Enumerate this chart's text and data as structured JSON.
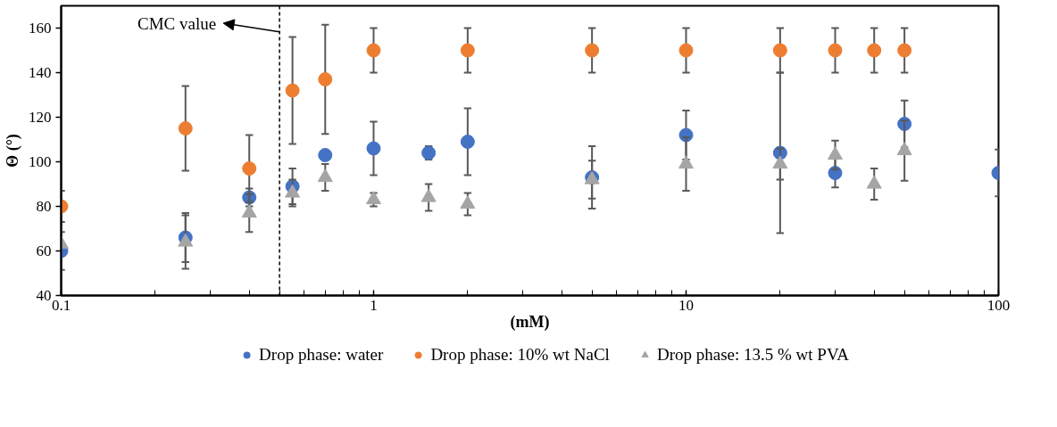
{
  "chart_data": {
    "type": "scatter",
    "xlabel": "(mM)",
    "ylabel": "Θ (°)",
    "log": "x",
    "xlim": [
      0.1,
      100
    ],
    "xticks": [
      0.1,
      1,
      10,
      100
    ],
    "ylim": [
      40,
      170
    ],
    "yticks": [
      40,
      60,
      80,
      100,
      120,
      140,
      160
    ],
    "grid": false,
    "legend": "bottom",
    "ref_lines": [
      {
        "axis": "x",
        "value": 0.5,
        "label": "CMC value",
        "line_style": "dashed",
        "color": "#000000"
      }
    ],
    "series": [
      {
        "name": "Drop phase: water",
        "color": "#4472c4",
        "marker": "circle",
        "x": [
          0.1,
          0.25,
          0.4,
          0.55,
          0.7,
          1,
          1.5,
          2,
          5,
          10,
          20,
          30,
          50,
          100
        ],
        "values": [
          60,
          66,
          84,
          89,
          103,
          106,
          104,
          109,
          93,
          112,
          104,
          95,
          117,
          95
        ],
        "errors": [
          8.5,
          11,
          4,
          8,
          null,
          12,
          3,
          15,
          14,
          11,
          36,
          6.5,
          10.5,
          10.5
        ]
      },
      {
        "name": "Drop phase: 10% wt NaCl",
        "color": "#ed7d31",
        "marker": "circle",
        "x": [
          0.1,
          0.25,
          0.4,
          0.55,
          0.7,
          1,
          2,
          5,
          10,
          20,
          30,
          40,
          50
        ],
        "values": [
          80,
          115,
          97,
          132,
          137,
          150,
          150,
          150,
          150,
          150,
          150,
          150,
          150
        ],
        "errors": [
          7,
          19,
          15,
          24,
          24.5,
          10,
          10,
          10,
          10,
          10,
          10,
          10,
          10
        ]
      },
      {
        "name": "Drop phase: 13.5 % wt PVA",
        "color": "#a5a5a5",
        "marker": "triangle",
        "x": [
          0.1,
          0.25,
          0.4,
          0.55,
          0.7,
          1,
          1.5,
          2,
          5,
          10,
          20,
          30,
          40,
          50
        ],
        "values": [
          63,
          64,
          77,
          86,
          93,
          83,
          84,
          81,
          92,
          99,
          99,
          103,
          90,
          105
        ],
        "errors": [
          null,
          12,
          8.5,
          6,
          6,
          3,
          6,
          5,
          8.5,
          12,
          7,
          6.5,
          7,
          13.5
        ]
      }
    ]
  }
}
